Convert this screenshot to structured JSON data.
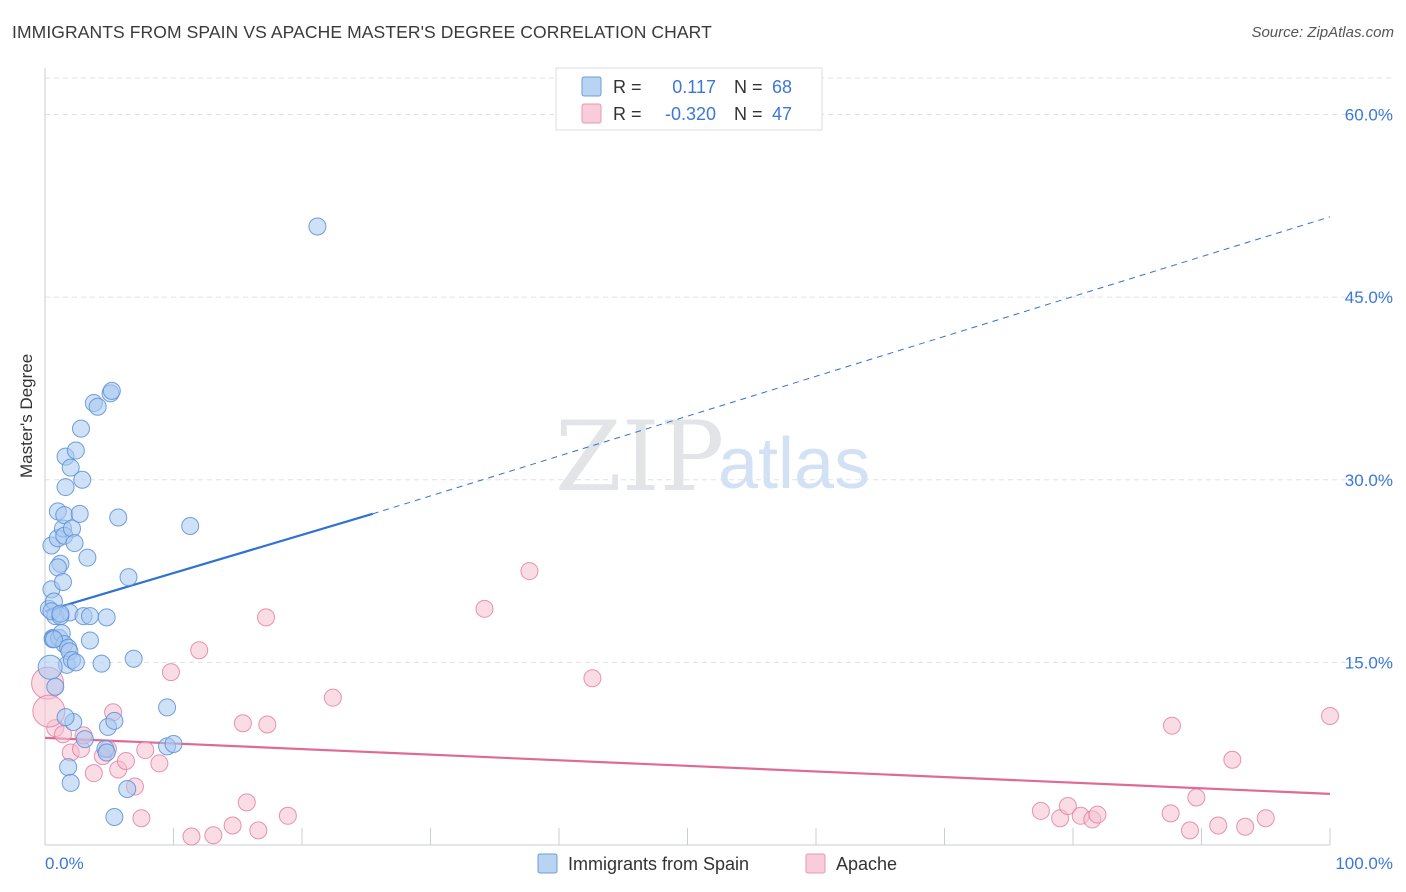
{
  "header": {
    "title": "IMMIGRANTS FROM SPAIN VS APACHE MASTER'S DEGREE CORRELATION CHART",
    "source": "Source: ZipAtlas.com"
  },
  "watermark": {
    "zip": "ZIP",
    "atlas": "atlas"
  },
  "legend_stats": [
    {
      "r_label": "R =",
      "r_value": "0.117",
      "n_label": "N =",
      "n_value": "68"
    },
    {
      "r_label": "R =",
      "r_value": "-0.320",
      "n_label": "N =",
      "n_value": "47"
    }
  ],
  "colors": {
    "blue_fill": "#a8c8f0",
    "blue_stroke": "#5a8fd6",
    "blue_line": "#2f72d4",
    "pink_fill": "#f6bfd0",
    "pink_stroke": "#e07aa0",
    "pink_line": "#e06a96",
    "value_text": "#3b78d8",
    "grid": "#dde3ea"
  },
  "chart_data": {
    "type": "scatter",
    "title": "IMMIGRANTS FROM SPAIN VS APACHE MASTER'S DEGREE CORRELATION CHART",
    "xlabel": "",
    "ylabel": "Master's Degree",
    "xlim": [
      0,
      100
    ],
    "ylim": [
      0,
      63
    ],
    "x_tick_labels": [
      "0.0%",
      "100.0%"
    ],
    "y_ticks": [
      15,
      30,
      45,
      60
    ],
    "y_tick_labels": [
      "15.0%",
      "30.0%",
      "45.0%",
      "60.0%"
    ],
    "legend": [
      "Immigrants from Spain",
      "Apache"
    ],
    "series": [
      {
        "name": "Immigrants from Spain",
        "points": [
          [
            0.3,
            19.4
          ],
          [
            0.5,
            21.0
          ],
          [
            0.6,
            17.0
          ],
          [
            0.7,
            20.0
          ],
          [
            0.6,
            16.9
          ],
          [
            0.8,
            18.8
          ],
          [
            0.5,
            24.6
          ],
          [
            1.0,
            27.4
          ],
          [
            1.0,
            25.2
          ],
          [
            1.2,
            23.1
          ],
          [
            1.0,
            22.8
          ],
          [
            1.1,
            17.0
          ],
          [
            1.3,
            17.4
          ],
          [
            1.4,
            26.0
          ],
          [
            1.5,
            27.1
          ],
          [
            1.4,
            21.6
          ],
          [
            1.5,
            25.4
          ],
          [
            1.6,
            29.4
          ],
          [
            1.6,
            31.9
          ],
          [
            1.5,
            16.5
          ],
          [
            1.7,
            14.8
          ],
          [
            1.8,
            16.2
          ],
          [
            1.9,
            19.1
          ],
          [
            1.9,
            15.9
          ],
          [
            2.0,
            31.0
          ],
          [
            2.1,
            26.0
          ],
          [
            2.1,
            15.2
          ],
          [
            2.2,
            10.1
          ],
          [
            2.3,
            24.8
          ],
          [
            2.4,
            32.4
          ],
          [
            2.4,
            15.0
          ],
          [
            2.7,
            27.2
          ],
          [
            2.8,
            34.2
          ],
          [
            2.9,
            30.0
          ],
          [
            3.0,
            18.8
          ],
          [
            3.3,
            23.6
          ],
          [
            3.5,
            18.8
          ],
          [
            3.5,
            16.8
          ],
          [
            3.8,
            36.3
          ],
          [
            4.1,
            36.0
          ],
          [
            4.4,
            14.9
          ],
          [
            4.8,
            18.7
          ],
          [
            4.9,
            9.7
          ],
          [
            5.1,
            37.1
          ],
          [
            5.2,
            37.3
          ],
          [
            5.4,
            10.2
          ],
          [
            5.7,
            26.9
          ],
          [
            6.5,
            22.0
          ],
          [
            6.9,
            15.3
          ],
          [
            9.5,
            11.3
          ],
          [
            11.3,
            26.2
          ],
          [
            21.2,
            50.8
          ],
          [
            1.6,
            10.5
          ],
          [
            1.8,
            6.4
          ],
          [
            2.0,
            5.1
          ],
          [
            3.1,
            8.7
          ],
          [
            4.7,
            7.9
          ],
          [
            4.8,
            7.6
          ],
          [
            5.4,
            2.3
          ],
          [
            6.4,
            4.6
          ],
          [
            9.5,
            8.1
          ],
          [
            10.0,
            8.3
          ],
          [
            0.4,
            14.6
          ],
          [
            0.5,
            19.2
          ],
          [
            0.7,
            16.9
          ],
          [
            1.2,
            18.8
          ],
          [
            1.2,
            19.0
          ],
          [
            0.8,
            13.0
          ]
        ],
        "trend": {
          "solid": [
            [
              0,
              19.2
            ],
            [
              25.5,
              27.2
            ]
          ],
          "dashed": [
            [
              25.5,
              27.2
            ],
            [
              100,
              51.6
            ]
          ]
        }
      },
      {
        "name": "Apache",
        "points": [
          [
            0.8,
            9.6
          ],
          [
            1.4,
            9.1
          ],
          [
            2.0,
            7.6
          ],
          [
            2.8,
            7.9
          ],
          [
            3.0,
            9.0
          ],
          [
            3.8,
            5.9
          ],
          [
            4.5,
            7.3
          ],
          [
            4.9,
            7.9
          ],
          [
            5.3,
            10.9
          ],
          [
            5.7,
            6.2
          ],
          [
            6.3,
            6.9
          ],
          [
            7.0,
            4.8
          ],
          [
            7.5,
            2.2
          ],
          [
            7.8,
            7.8
          ],
          [
            8.9,
            6.7
          ],
          [
            9.8,
            14.2
          ],
          [
            11.4,
            0.7
          ],
          [
            12.0,
            16.0
          ],
          [
            13.1,
            0.8
          ],
          [
            14.6,
            1.6
          ],
          [
            15.4,
            10.0
          ],
          [
            15.7,
            3.5
          ],
          [
            16.6,
            1.2
          ],
          [
            17.2,
            18.7
          ],
          [
            17.3,
            9.9
          ],
          [
            18.9,
            2.4
          ],
          [
            22.4,
            12.1
          ],
          [
            34.2,
            19.4
          ],
          [
            37.7,
            22.5
          ],
          [
            42.6,
            13.7
          ],
          [
            77.5,
            2.8
          ],
          [
            79.0,
            2.2
          ],
          [
            79.6,
            3.2
          ],
          [
            80.6,
            2.4
          ],
          [
            81.5,
            2.1
          ],
          [
            81.9,
            2.5
          ],
          [
            87.6,
            2.6
          ],
          [
            87.7,
            9.8
          ],
          [
            89.1,
            1.2
          ],
          [
            89.6,
            3.9
          ],
          [
            91.3,
            1.6
          ],
          [
            92.4,
            7.0
          ],
          [
            93.4,
            1.5
          ],
          [
            95.0,
            2.2
          ],
          [
            100.0,
            10.6
          ],
          [
            0.2,
            13.3
          ],
          [
            0.3,
            11.0
          ]
        ],
        "trend": {
          "solid": [
            [
              0,
              8.8
            ],
            [
              100,
              4.2
            ]
          ]
        }
      }
    ]
  }
}
